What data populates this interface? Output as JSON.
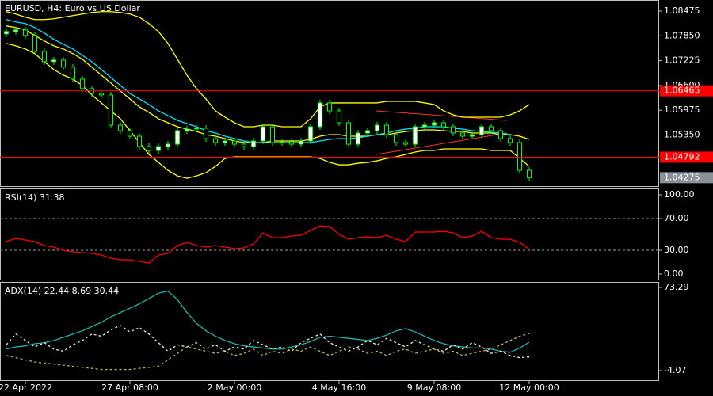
{
  "chart_data": [
    {
      "type": "candlestick",
      "title": "EURUSD, H4: Euro vs US Dollar",
      "open": [
        1.079,
        1.0796,
        1.08,
        1.0786,
        1.0746,
        1.072,
        1.0724,
        1.0706,
        1.0676,
        1.0652,
        1.064,
        1.0636,
        1.056,
        1.0546,
        1.0532,
        1.0506,
        1.0496,
        1.0506,
        1.0512,
        1.0546,
        1.055,
        1.0552,
        1.0526,
        1.0516,
        1.052,
        1.0512,
        1.0506,
        1.052,
        1.0556,
        1.0516,
        1.0518,
        1.0512,
        1.052,
        1.0556,
        1.0616,
        1.0596,
        1.0566,
        1.0512,
        1.054,
        1.0546,
        1.056,
        1.0536,
        1.0516,
        1.0512,
        1.0556,
        1.056,
        1.0566,
        1.0556,
        1.054,
        1.0532,
        1.0536,
        1.0556,
        1.0546,
        1.0526,
        1.0516,
        1.0446
      ],
      "high": [
        1.0804,
        1.0808,
        1.0808,
        1.0794,
        1.0754,
        1.0732,
        1.0732,
        1.0714,
        1.0684,
        1.066,
        1.0648,
        1.0644,
        1.0568,
        1.0554,
        1.054,
        1.0514,
        1.0514,
        1.052,
        1.0554,
        1.0558,
        1.056,
        1.056,
        1.0534,
        1.0528,
        1.0528,
        1.052,
        1.0528,
        1.0564,
        1.0564,
        1.0526,
        1.0526,
        1.0528,
        1.0564,
        1.0624,
        1.0624,
        1.0604,
        1.0574,
        1.0548,
        1.0554,
        1.0568,
        1.0568,
        1.0544,
        1.0524,
        1.0564,
        1.0568,
        1.0574,
        1.0574,
        1.0564,
        1.0548,
        1.0544,
        1.0564,
        1.0564,
        1.0554,
        1.0534,
        1.0524,
        1.0454
      ],
      "low": [
        1.0782,
        1.0788,
        1.0778,
        1.0738,
        1.0712,
        1.0712,
        1.0698,
        1.0668,
        1.0644,
        1.0632,
        1.0628,
        1.0552,
        1.0538,
        1.0524,
        1.0498,
        1.0488,
        1.0488,
        1.0498,
        1.0504,
        1.0538,
        1.0542,
        1.0518,
        1.0508,
        1.0508,
        1.0504,
        1.0498,
        1.0498,
        1.0512,
        1.0508,
        1.0508,
        1.0504,
        1.0504,
        1.0512,
        1.0548,
        1.0588,
        1.0558,
        1.0504,
        1.0504,
        1.0532,
        1.0538,
        1.0528,
        1.0508,
        1.0504,
        1.0504,
        1.0548,
        1.0552,
        1.0548,
        1.0532,
        1.0524,
        1.0524,
        1.0528,
        1.0538,
        1.0518,
        1.0508,
        1.0438,
        1.04195
      ],
      "close": [
        1.0796,
        1.08,
        1.0786,
        1.0746,
        1.072,
        1.0724,
        1.0706,
        1.0676,
        1.0652,
        1.064,
        1.0636,
        1.056,
        1.0546,
        1.0532,
        1.0506,
        1.0496,
        1.0506,
        1.0512,
        1.0546,
        1.055,
        1.0552,
        1.0526,
        1.0516,
        1.052,
        1.0512,
        1.0506,
        1.052,
        1.0556,
        1.0516,
        1.0518,
        1.0512,
        1.052,
        1.0556,
        1.0616,
        1.0596,
        1.0566,
        1.0512,
        1.054,
        1.0546,
        1.056,
        1.0536,
        1.0516,
        1.0512,
        1.0556,
        1.056,
        1.0566,
        1.0556,
        1.054,
        1.0532,
        1.0536,
        1.0556,
        1.0546,
        1.0526,
        1.0516,
        1.0446,
        1.04275
      ],
      "up_color": "#ffffff",
      "down_color": "#000000",
      "wick_color": "#00ff00",
      "overlays": [
        {
          "color": "#ffff00",
          "values": [
            1.0846,
            1.084,
            1.0832,
            1.0826,
            1.0826,
            1.0828,
            1.0832,
            1.0836,
            1.084,
            1.0844,
            1.0846,
            1.0846,
            1.0844,
            1.084,
            1.0832,
            1.0816,
            1.0796,
            1.0766,
            1.0726,
            1.0686,
            1.0652,
            1.0626,
            1.0596,
            1.058,
            1.0566,
            1.0556,
            1.0556,
            1.056,
            1.056,
            1.0556,
            1.0556,
            1.0556,
            1.0576,
            1.0606,
            1.0616,
            1.0616,
            1.0616,
            1.0616,
            1.0616,
            1.0616,
            1.062,
            1.062,
            1.062,
            1.062,
            1.0616,
            1.0612,
            1.0596,
            1.0586,
            1.058,
            1.058,
            1.058,
            1.058,
            1.058,
            1.0586,
            1.0596,
            1.0612
          ]
        },
        {
          "color": "#ffff00",
          "values": [
            1.081,
            1.0806,
            1.08,
            1.0786,
            1.0772,
            1.076,
            1.0752,
            1.074,
            1.0726,
            1.0706,
            1.0686,
            1.0666,
            1.0646,
            1.0626,
            1.0606,
            1.0592,
            1.0576,
            1.0566,
            1.0556,
            1.055,
            1.0544,
            1.0536,
            1.0532,
            1.0526,
            1.052,
            1.0516,
            1.0516,
            1.0516,
            1.052,
            1.052,
            1.052,
            1.052,
            1.0524,
            1.0532,
            1.0536,
            1.0536,
            1.0532,
            1.0532,
            1.0532,
            1.0536,
            1.0536,
            1.054,
            1.0544,
            1.0546,
            1.0548,
            1.0548,
            1.0546,
            1.0544,
            1.0544,
            1.054,
            1.054,
            1.054,
            1.0536,
            1.0536,
            1.0532,
            1.0524
          ]
        },
        {
          "color": "#ffff00",
          "values": [
            1.0766,
            1.076,
            1.0752,
            1.074,
            1.072,
            1.07,
            1.0686,
            1.0676,
            1.066,
            1.0636,
            1.0616,
            1.0596,
            1.0576,
            1.0546,
            1.0516,
            1.0486,
            1.0466,
            1.0446,
            1.0432,
            1.0426,
            1.0432,
            1.044,
            1.0456,
            1.0476,
            1.048,
            1.048,
            1.048,
            1.048,
            1.048,
            1.048,
            1.048,
            1.048,
            1.048,
            1.0476,
            1.0466,
            1.046,
            1.046,
            1.0464,
            1.0466,
            1.047,
            1.0476,
            1.048,
            1.0486,
            1.0492,
            1.0496,
            1.0496,
            1.05,
            1.05,
            1.05,
            1.05,
            1.05,
            1.0496,
            1.0496,
            1.0496,
            1.0476,
            1.0456
          ]
        },
        {
          "color": "#00e5ff",
          "values": [
            1.0826,
            1.082,
            1.0816,
            1.0806,
            1.0792,
            1.0776,
            1.0764,
            1.0752,
            1.0736,
            1.072,
            1.07,
            1.068,
            1.066,
            1.064,
            1.0626,
            1.0612,
            1.0596,
            1.0584,
            1.0572,
            1.0564,
            1.0556,
            1.0546,
            1.054,
            1.0532,
            1.0526,
            1.052,
            1.0516,
            1.0516,
            1.0516,
            1.0516,
            1.0516,
            1.0516,
            1.0516,
            1.052,
            1.0524,
            1.0526,
            1.0526,
            1.0528,
            1.0532,
            1.0536,
            1.054,
            1.0546,
            1.055,
            1.0552,
            1.0556,
            1.0556,
            1.0556,
            1.0552,
            1.055,
            1.0546,
            1.0544,
            1.0542,
            1.054,
            1.0536,
            null,
            null
          ]
        }
      ],
      "hlines": [
        1.06465,
        1.04792
      ],
      "hline_color": "#ff0000",
      "ylim": [
        1.04062,
        1.08755
      ],
      "yticks": [
        1.08475,
        {
          "value": 1.0785,
          "label": "1.07850"
        },
        1.07225,
        {
          "value": 1.066,
          "label": "1.06600"
        },
        1.05975,
        {
          "value": 1.0535,
          "label": "1.05350"
        }
      ]
    },
    {
      "type": "line",
      "title": "RSI(14) 31.38",
      "series": [
        {
          "color": "#ff0000",
          "values": [
            41,
            45,
            43,
            41,
            36,
            34,
            30,
            28,
            27,
            26,
            24,
            20,
            18,
            18,
            16,
            14,
            24,
            26,
            36,
            40,
            36,
            34,
            36,
            34,
            32,
            33,
            38,
            52,
            46,
            46,
            48,
            49,
            55,
            61,
            60,
            50,
            44,
            46,
            47,
            46,
            49,
            44,
            41,
            53,
            53,
            53,
            54,
            52,
            46,
            48,
            54,
            46,
            44,
            44,
            40,
            31.38
          ]
        }
      ],
      "levels": [
        70,
        30
      ],
      "ylim": [
        -7,
        107
      ],
      "yticks": [
        {
          "value": 100,
          "label": "100.00"
        },
        {
          "value": 70,
          "label": "70.00"
        },
        {
          "value": 30,
          "label": "30.00"
        },
        {
          "value": 0,
          "label": "0.00"
        }
      ]
    },
    {
      "type": "line",
      "title": "ADX(14) 22.44 8.69 30.44",
      "series": [
        {
          "color": "#20b2aa",
          "dash": false,
          "values": [
            16,
            18,
            19,
            21,
            22,
            24,
            27,
            30,
            33,
            37,
            41,
            46,
            50,
            54,
            58,
            63,
            68,
            70,
            62,
            50,
            40,
            33,
            28,
            24,
            21,
            19,
            18,
            17,
            16,
            16,
            18,
            20,
            23,
            27,
            28,
            27,
            26,
            25,
            24,
            26,
            29,
            33,
            35,
            32,
            28,
            24,
            21,
            19,
            18,
            17,
            17,
            16,
            14,
            13,
            17,
            22.44
          ]
        },
        {
          "color": "#f0f0c0",
          "dash": true,
          "values": [
            20,
            30,
            24,
            18,
            22,
            16,
            14,
            20,
            24,
            30,
            28,
            34,
            38,
            32,
            36,
            30,
            22,
            14,
            20,
            18,
            22,
            16,
            20,
            14,
            18,
            16,
            24,
            20,
            16,
            18,
            14,
            22,
            26,
            30,
            22,
            18,
            14,
            18,
            24,
            20,
            26,
            22,
            18,
            24,
            20,
            16,
            14,
            20,
            16,
            22,
            18,
            12,
            14,
            10,
            8,
            8.69
          ]
        },
        {
          "color": "#b8b060",
          "dash": true,
          "values": [
            10,
            8,
            6,
            4,
            3,
            2,
            1,
            0,
            -1,
            -2,
            -3,
            -3,
            -3,
            -3,
            -2,
            -1,
            0,
            6,
            12,
            18,
            16,
            14,
            12,
            14,
            10,
            12,
            16,
            10,
            14,
            12,
            16,
            14,
            18,
            14,
            10,
            14,
            18,
            16,
            12,
            14,
            10,
            14,
            16,
            12,
            14,
            16,
            12,
            14,
            10,
            12,
            14,
            16,
            20,
            24,
            28,
            30.44
          ]
        }
      ],
      "ylim": [
        -12.91,
        77.71
      ],
      "yticks": [
        73.29,
        -4.07
      ],
      "xticks": [
        {
          "value": 2,
          "label": "22 Apr 2022"
        },
        {
          "value": 13,
          "label": "27 Apr 08:00"
        },
        {
          "value": 24,
          "label": "2 May 00:00"
        },
        {
          "value": 35,
          "label": "4 May 16:00"
        },
        {
          "value": 45,
          "label": "9 May 08:00"
        },
        {
          "value": 55,
          "label": "12 May 00:00"
        }
      ]
    }
  ]
}
